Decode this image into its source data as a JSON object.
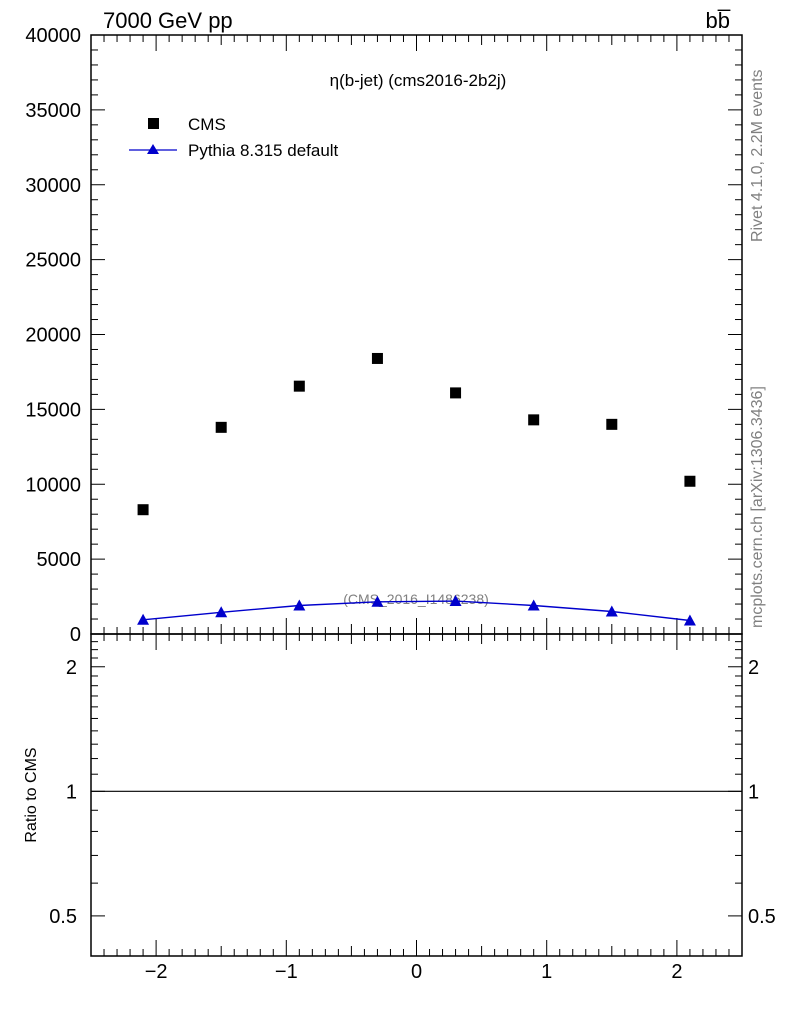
{
  "header": {
    "energy_label": "7000 GeV pp",
    "process_label": "bb̅"
  },
  "side_labels": {
    "rivet": "Rivet 4.1.0,  2.2M events",
    "mcplots": "mcplots.cern.ch [arXiv:1306.3436]"
  },
  "chart_data": {
    "type": "scatter",
    "title": "η(b-jet) (cms2016-2b2j)",
    "watermark": "(CMS_2016_I1486238)",
    "xlabel": "",
    "ylabel": "",
    "xlim": [
      -2.5,
      2.5
    ],
    "ylim": [
      0,
      40000
    ],
    "x": [
      -2.1,
      -1.5,
      -0.9,
      -0.3,
      0.3,
      0.9,
      1.5,
      2.1
    ],
    "x_ticks": [
      -2,
      -1,
      0,
      1,
      2
    ],
    "x_tick_labels": [
      "−2",
      "−1",
      "0",
      "1",
      "2"
    ],
    "y_ticks": [
      0,
      5000,
      10000,
      15000,
      20000,
      25000,
      30000,
      35000,
      40000
    ],
    "y_tick_labels": [
      "0",
      "5000",
      "10000",
      "15000",
      "20000",
      "25000",
      "30000",
      "35000",
      "40000"
    ],
    "series": [
      {
        "name": "CMS",
        "marker": "square",
        "color": "#000000",
        "values": [
          8300,
          13800,
          16550,
          18400,
          16100,
          14300,
          14000,
          10200
        ]
      },
      {
        "name": "Pythia 8.315 default",
        "marker": "triangle",
        "color": "#0000cc",
        "values": [
          950,
          1450,
          1900,
          2150,
          2200,
          1900,
          1500,
          900
        ]
      }
    ],
    "legend": [
      "CMS",
      "Pythia 8.315 default"
    ],
    "legend_position": "top-left",
    "ratio_panel": {
      "ylabel": "Ratio to CMS",
      "ylim": [
        0.4,
        2.4
      ],
      "scale": "log",
      "labeled_ticks": [
        0.5,
        1,
        2
      ],
      "labeled_tick_text": [
        "0.5",
        "1",
        "2"
      ],
      "reference_line": 1
    }
  }
}
